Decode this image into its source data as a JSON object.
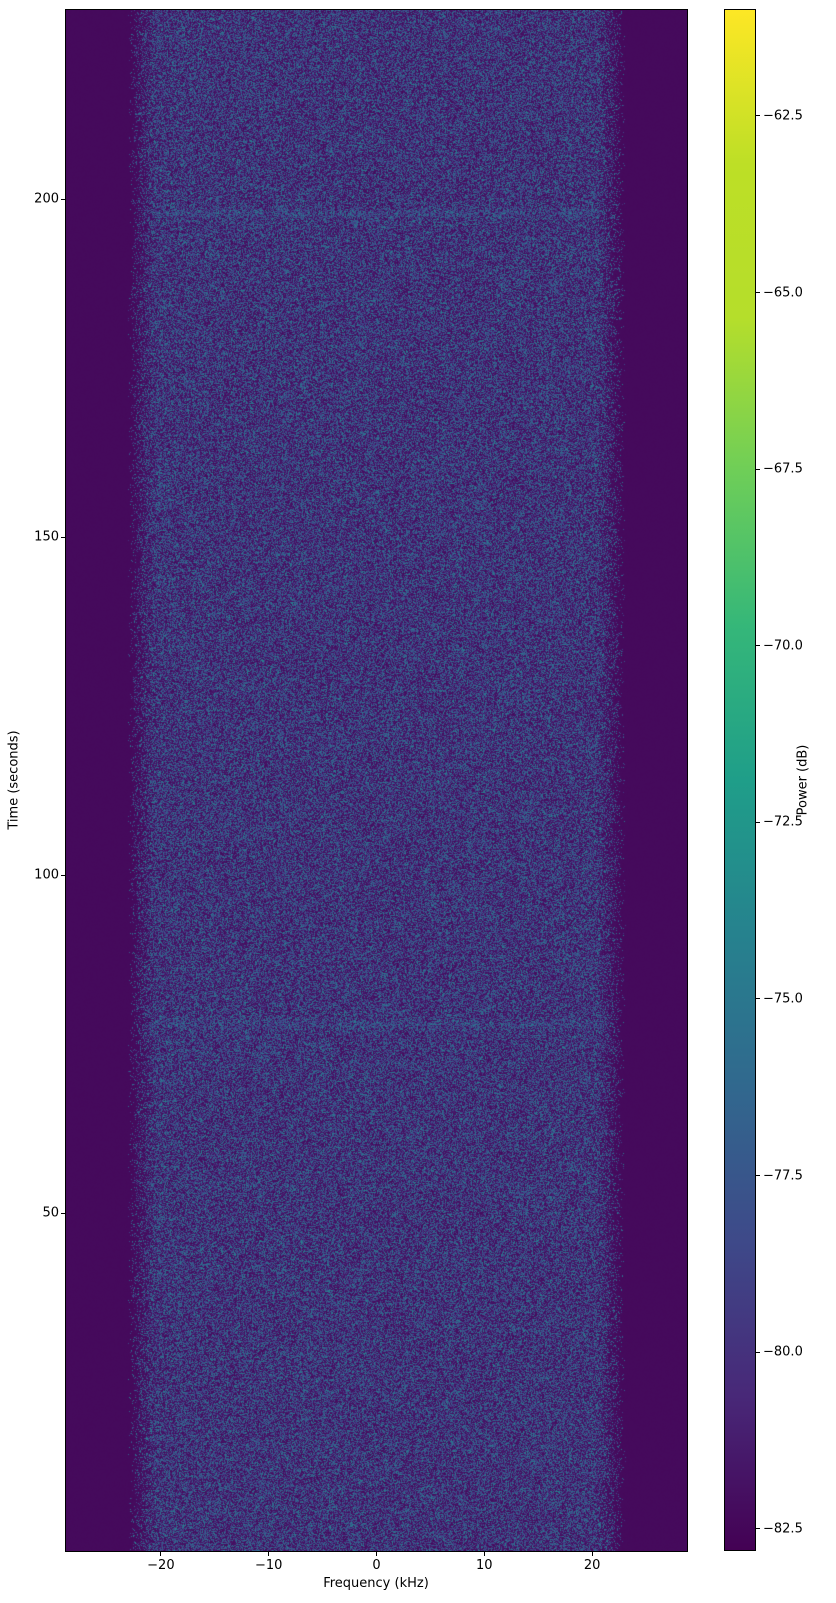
{
  "chart_data": {
    "type": "heatmap",
    "subtype": "spectrogram",
    "title": "",
    "xlabel": "Frequency (kHz)",
    "ylabel": "Time (seconds)",
    "x_axis": {
      "range_khz": [
        -28.8,
        28.8
      ],
      "ticks": [
        {
          "value": -20,
          "label": "−20"
        },
        {
          "value": -10,
          "label": "−10"
        },
        {
          "value": 0,
          "label": "0"
        },
        {
          "value": 10,
          "label": "10"
        },
        {
          "value": 20,
          "label": "20"
        }
      ]
    },
    "y_axis": {
      "range_seconds": [
        0,
        228
      ],
      "ticks": [
        {
          "value": 50,
          "label": "50"
        },
        {
          "value": 100,
          "label": "100"
        },
        {
          "value": 150,
          "label": "150"
        },
        {
          "value": 200,
          "label": "200"
        }
      ]
    },
    "colorbar": {
      "label": "Power (dB)",
      "range_db": [
        -82.8,
        -61.0
      ],
      "colormap": "viridis",
      "colormap_stops": [
        "#440154",
        "#482878",
        "#3e4989",
        "#31688e",
        "#26828e",
        "#1f9e89",
        "#35b779",
        "#6ece58",
        "#b5de2b",
        "#bddf26",
        "#fde725"
      ],
      "ticks": [
        {
          "value": -62.5,
          "label": "−62.5"
        },
        {
          "value": -65.0,
          "label": "−65.0"
        },
        {
          "value": -67.5,
          "label": "−67.5"
        },
        {
          "value": -70.0,
          "label": "−70.0"
        },
        {
          "value": -72.5,
          "label": "−72.5"
        },
        {
          "value": -75.0,
          "label": "−75.0"
        },
        {
          "value": -77.5,
          "label": "−77.5"
        },
        {
          "value": -80.0,
          "label": "−80.0"
        },
        {
          "value": -82.5,
          "label": "−82.5"
        }
      ]
    },
    "signal": {
      "background_db": -83,
      "occupied_band_khz": [
        -22.5,
        22.5
      ],
      "full_intensity_band_khz": [
        -20.5,
        20.5
      ],
      "speckle_peak_db": -75,
      "bright_time_lines_seconds": [
        198,
        78
      ]
    }
  }
}
